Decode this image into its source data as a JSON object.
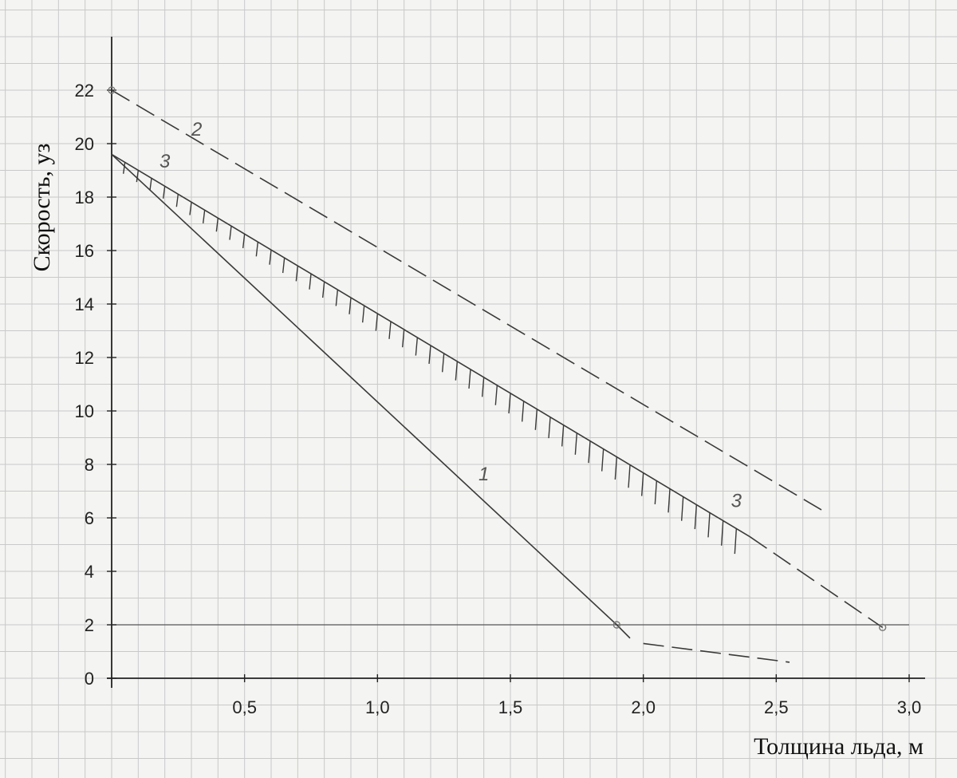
{
  "chart_data": {
    "type": "line",
    "xlabel": "Толщина льда, м",
    "ylabel": "Скорость, уз",
    "xlim": [
      0,
      3.0
    ],
    "ylim": [
      0,
      24
    ],
    "x_ticks": [
      "0,5",
      "1,0",
      "1,5",
      "2,0",
      "2,5",
      "3,0"
    ],
    "x_tick_values": [
      0.5,
      1.0,
      1.5,
      2.0,
      2.5,
      3.0
    ],
    "y_ticks": [
      "0",
      "2",
      "4",
      "6",
      "8",
      "10",
      "12",
      "14",
      "16",
      "18",
      "20",
      "22"
    ],
    "y_tick_values": [
      0,
      2,
      4,
      6,
      8,
      10,
      12,
      14,
      16,
      18,
      20,
      22
    ],
    "grid": true,
    "reference_line_y": 2,
    "series": [
      {
        "name": "1",
        "style": "solid",
        "x": [
          0,
          1.9,
          1.95
        ],
        "y": [
          19.6,
          2.0,
          1.5
        ]
      },
      {
        "name": "1",
        "style": "dashed",
        "x": [
          2.0,
          2.55
        ],
        "y": [
          1.3,
          0.6
        ]
      },
      {
        "name": "2",
        "style": "dashed",
        "x": [
          0,
          2.67
        ],
        "y": [
          22,
          6.3
        ]
      },
      {
        "name": "3",
        "style": "solid-hatched",
        "x": [
          0,
          2.4
        ],
        "y": [
          19.6,
          5.3
        ]
      },
      {
        "name": "3",
        "style": "dashed",
        "x": [
          2.4,
          2.9
        ],
        "y": [
          5.3,
          1.9
        ]
      }
    ],
    "curve_labels": [
      {
        "text": "1",
        "x": 1.4,
        "y": 7.4
      },
      {
        "text": "2",
        "x": 0.32,
        "y": 20.3
      },
      {
        "text": "3",
        "x": 0.2,
        "y": 19.1
      },
      {
        "text": "3",
        "x": 2.35,
        "y": 6.4
      }
    ],
    "colors": {
      "line": "#3a3a3a",
      "grid": "#c9c9c9",
      "background": "#f4f4f2"
    }
  }
}
